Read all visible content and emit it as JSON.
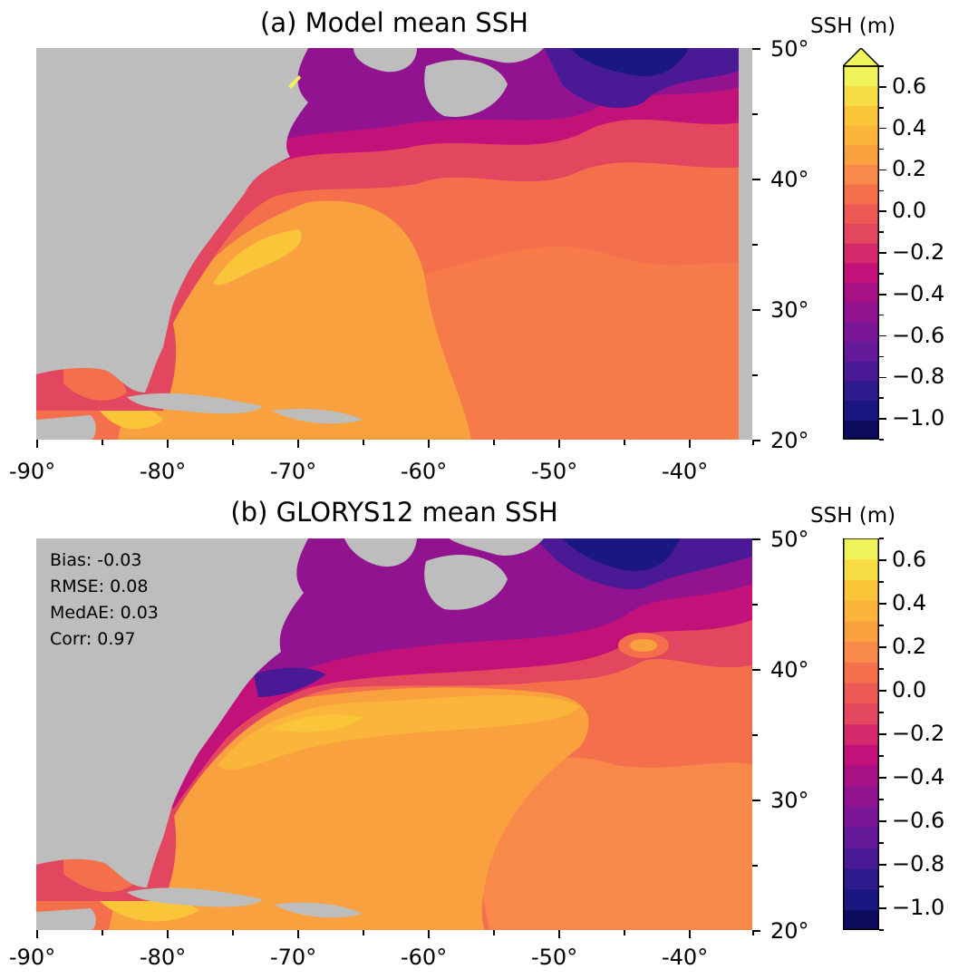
{
  "panels": [
    {
      "title": "(a) Model mean SSH",
      "colorbar": {
        "label": "SSH (m)",
        "extend": "max",
        "ticks": [
          "0.6",
          "0.4",
          "0.2",
          "0.0",
          "−0.2",
          "−0.4",
          "−0.6",
          "−0.8",
          "−1.0"
        ]
      }
    },
    {
      "title": "(b) GLORYS12 mean SSH",
      "stats": [
        "Bias: -0.03",
        "RMSE: 0.08",
        "MedAE: 0.03",
        "Corr: 0.97"
      ],
      "colorbar": {
        "label": "SSH (m)",
        "extend": "none",
        "ticks": [
          "0.6",
          "0.4",
          "0.2",
          "0.0",
          "−0.2",
          "−0.4",
          "−0.6",
          "−0.8",
          "−1.0"
        ]
      }
    }
  ],
  "x_tick_labels": [
    "-90°",
    "-80°",
    "-70°",
    "-60°",
    "-50°",
    "-40°"
  ],
  "y_tick_labels": [
    "50°",
    "40°",
    "30°",
    "20°"
  ],
  "map_extent": {
    "lon": [
      -90,
      -35
    ],
    "lat": [
      20,
      50
    ]
  },
  "colormap": {
    "name": "plasma",
    "levels": [
      -1.1,
      -1.0,
      -0.9,
      -0.8,
      -0.7,
      -0.6,
      -0.5,
      -0.4,
      -0.3,
      -0.2,
      -0.1,
      0.0,
      0.1,
      0.2,
      0.3,
      0.4,
      0.5,
      0.6,
      0.7
    ],
    "colors": [
      "#0d0b5e",
      "#1b1780",
      "#2f1a8e",
      "#4a1a96",
      "#641a98",
      "#7b1796",
      "#921390",
      "#a71185",
      "#c21279",
      "#d42a6c",
      "#e3465f",
      "#ed5a55",
      "#f4704d",
      "#f8894a",
      "#f9a03f",
      "#fab53a",
      "#fbc53a",
      "#f7dc43",
      "#f0f35a"
    ],
    "land_color": "#bdbdbd"
  }
}
